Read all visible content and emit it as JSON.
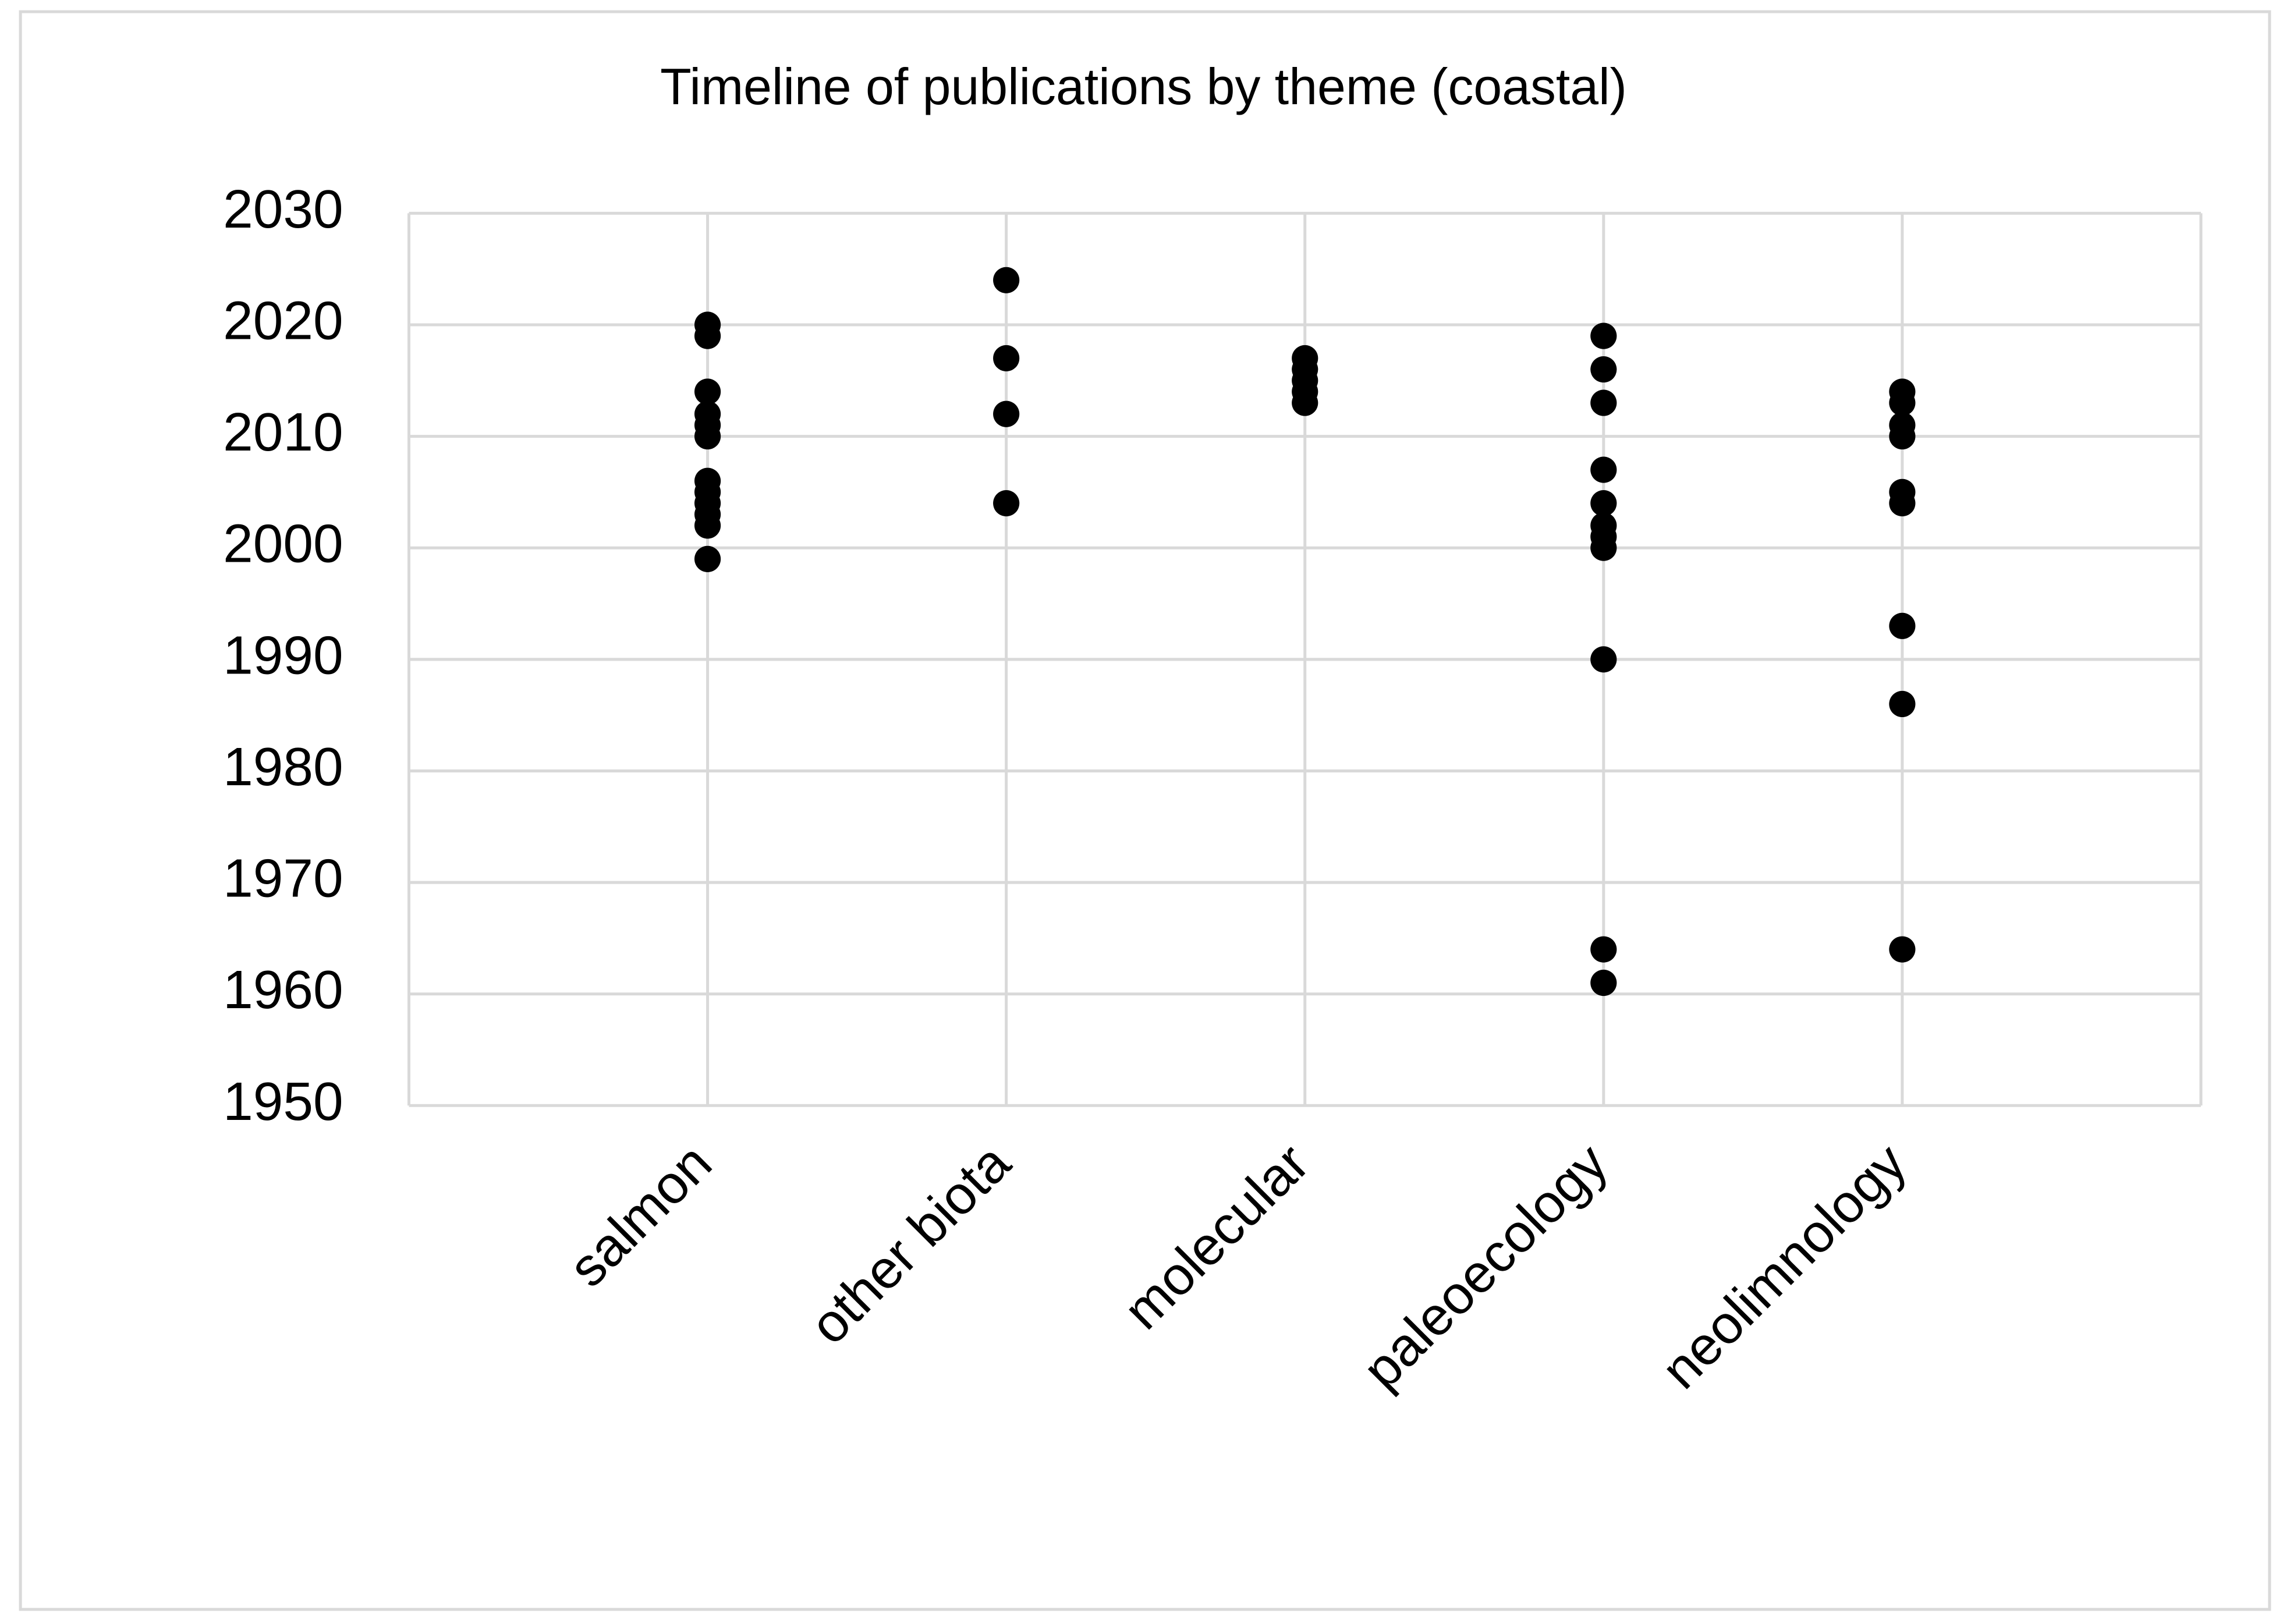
{
  "chart_data": {
    "type": "scatter",
    "title": "Timeline of publications by theme (coastal)",
    "categories": [
      "salmon",
      "other biota",
      "molecular",
      "paleoecology",
      "neolimnology"
    ],
    "values": [
      [
        2020,
        2019,
        2014,
        2012,
        2011,
        2010,
        2006,
        2005,
        2004,
        2003,
        2002,
        1999
      ],
      [
        2024,
        2017,
        2012,
        2004
      ],
      [
        2017,
        2016,
        2015,
        2014,
        2013
      ],
      [
        2019,
        2016,
        2013,
        2007,
        2004,
        2002,
        2001,
        2000,
        1990,
        1964,
        1961
      ],
      [
        2014,
        2013,
        2011,
        2010,
        2005,
        2004,
        1993,
        1986,
        1964
      ]
    ],
    "color": "#000000",
    "ylim": [
      1950,
      2030
    ],
    "yticks": [
      1950,
      1960,
      1970,
      1980,
      1990,
      2000,
      2010,
      2020,
      2030
    ],
    "grid": true
  }
}
